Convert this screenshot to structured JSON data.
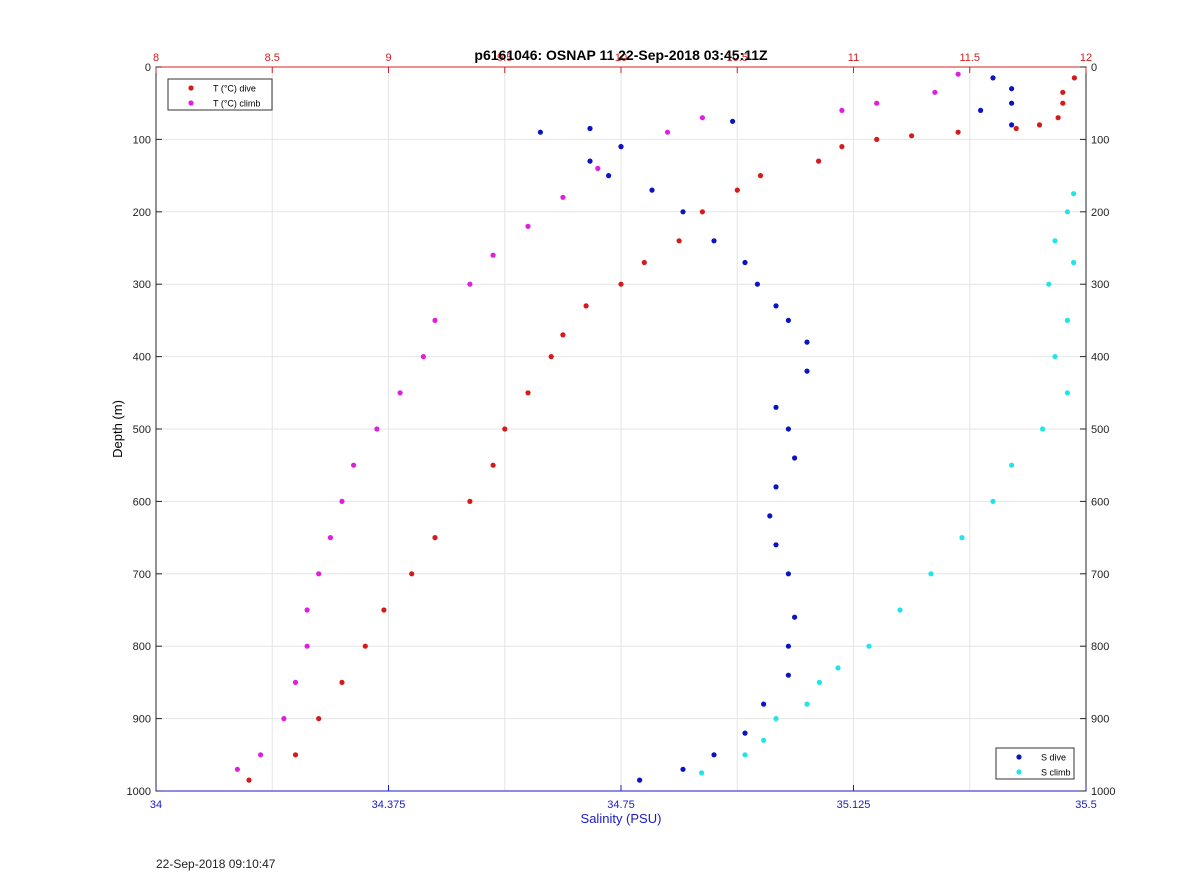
{
  "footer": {
    "timestamp": "22-Sep-2018 09:10:47"
  },
  "chart_data": {
    "type": "scatter",
    "title": "p6161046: OSNAP 11 22-Sep-2018 03:45:11Z",
    "axes": {
      "top_x": {
        "label": "",
        "range": [
          8,
          12
        ],
        "ticks": [
          "8",
          "8.5",
          "9",
          "9.5",
          "10",
          "10.5",
          "11",
          "11.5",
          "12"
        ],
        "tick_values": [
          8,
          8.5,
          9,
          9.5,
          10,
          10.5,
          11,
          11.5,
          12
        ],
        "color": "#d42020"
      },
      "bottom_x": {
        "label": "Salinity (PSU)",
        "range": [
          34,
          35.5
        ],
        "ticks": [
          "34",
          "34.375",
          "34.75",
          "35.125",
          "35.5"
        ],
        "tick_values": [
          34,
          34.375,
          34.75,
          35.125,
          35.5
        ],
        "color": "#1a1ac8"
      },
      "y": {
        "label": "Depth (m)",
        "range": [
          0,
          1000
        ],
        "reversed": true,
        "ticks": [
          "0",
          "100",
          "200",
          "300",
          "400",
          "500",
          "600",
          "700",
          "800",
          "900",
          "1000"
        ],
        "tick_values": [
          0,
          100,
          200,
          300,
          400,
          500,
          600,
          700,
          800,
          900,
          1000
        ]
      }
    },
    "grid": true,
    "legends": [
      {
        "placement": "top-left",
        "entries": [
          "T (°C) dive",
          "T (°C) climb"
        ]
      },
      {
        "placement": "bottom-right",
        "entries": [
          "S dive",
          "S climb"
        ]
      }
    ],
    "series": [
      {
        "name": "T (°C) dive",
        "axis": "top_x",
        "color": "#d41a1a",
        "points": [
          [
            11.95,
            15
          ],
          [
            11.9,
            35
          ],
          [
            11.9,
            50
          ],
          [
            11.88,
            70
          ],
          [
            11.8,
            80
          ],
          [
            11.7,
            85
          ],
          [
            11.45,
            90
          ],
          [
            11.25,
            95
          ],
          [
            11.1,
            100
          ],
          [
            10.95,
            110
          ],
          [
            10.85,
            130
          ],
          [
            10.6,
            150
          ],
          [
            10.5,
            170
          ],
          [
            10.35,
            200
          ],
          [
            10.25,
            240
          ],
          [
            10.1,
            270
          ],
          [
            10.0,
            300
          ],
          [
            9.85,
            330
          ],
          [
            9.75,
            370
          ],
          [
            9.7,
            400
          ],
          [
            9.6,
            450
          ],
          [
            9.5,
            500
          ],
          [
            9.45,
            550
          ],
          [
            9.35,
            600
          ],
          [
            9.2,
            650
          ],
          [
            9.1,
            700
          ],
          [
            8.98,
            750
          ],
          [
            8.9,
            800
          ],
          [
            8.8,
            850
          ],
          [
            8.7,
            900
          ],
          [
            8.6,
            950
          ],
          [
            8.4,
            985
          ]
        ]
      },
      {
        "name": "T (°C) climb",
        "axis": "top_x",
        "color": "#e01ee0",
        "points": [
          [
            11.45,
            10
          ],
          [
            11.35,
            35
          ],
          [
            11.1,
            50
          ],
          [
            10.95,
            60
          ],
          [
            10.35,
            70
          ],
          [
            10.2,
            90
          ],
          [
            10.0,
            110
          ],
          [
            9.9,
            140
          ],
          [
            9.75,
            180
          ],
          [
            9.6,
            220
          ],
          [
            9.45,
            260
          ],
          [
            9.35,
            300
          ],
          [
            9.2,
            350
          ],
          [
            9.15,
            400
          ],
          [
            9.05,
            450
          ],
          [
            8.95,
            500
          ],
          [
            8.85,
            550
          ],
          [
            8.8,
            600
          ],
          [
            8.75,
            650
          ],
          [
            8.7,
            700
          ],
          [
            8.65,
            750
          ],
          [
            8.65,
            800
          ],
          [
            8.6,
            850
          ],
          [
            8.55,
            900
          ],
          [
            8.45,
            950
          ],
          [
            8.35,
            970
          ]
        ]
      },
      {
        "name": "S dive",
        "axis": "bottom_x",
        "color": "#0a14c0",
        "points": [
          [
            35.35,
            15
          ],
          [
            35.38,
            30
          ],
          [
            35.38,
            50
          ],
          [
            35.33,
            60
          ],
          [
            35.38,
            80
          ],
          [
            34.93,
            75
          ],
          [
            34.7,
            85
          ],
          [
            34.62,
            90
          ],
          [
            34.75,
            110
          ],
          [
            34.7,
            130
          ],
          [
            34.73,
            150
          ],
          [
            34.8,
            170
          ],
          [
            34.85,
            200
          ],
          [
            34.9,
            240
          ],
          [
            34.95,
            270
          ],
          [
            34.97,
            300
          ],
          [
            35.0,
            330
          ],
          [
            35.02,
            350
          ],
          [
            35.05,
            380
          ],
          [
            35.05,
            420
          ],
          [
            35.0,
            470
          ],
          [
            35.02,
            500
          ],
          [
            35.03,
            540
          ],
          [
            35.0,
            580
          ],
          [
            34.99,
            620
          ],
          [
            35.0,
            660
          ],
          [
            35.02,
            700
          ],
          [
            35.03,
            760
          ],
          [
            35.02,
            800
          ],
          [
            35.02,
            840
          ],
          [
            34.98,
            880
          ],
          [
            34.95,
            920
          ],
          [
            34.9,
            950
          ],
          [
            34.85,
            970
          ],
          [
            34.78,
            985
          ]
        ]
      },
      {
        "name": "S climb",
        "axis": "bottom_x",
        "color": "#20e4ec",
        "points": [
          [
            35.48,
            175
          ],
          [
            35.47,
            200
          ],
          [
            35.45,
            240
          ],
          [
            35.48,
            270
          ],
          [
            35.44,
            300
          ],
          [
            35.47,
            350
          ],
          [
            35.45,
            400
          ],
          [
            35.47,
            450
          ],
          [
            35.43,
            500
          ],
          [
            35.38,
            550
          ],
          [
            35.35,
            600
          ],
          [
            35.3,
            650
          ],
          [
            35.25,
            700
          ],
          [
            35.2,
            750
          ],
          [
            35.15,
            800
          ],
          [
            35.1,
            830
          ],
          [
            35.07,
            850
          ],
          [
            35.05,
            880
          ],
          [
            35.0,
            900
          ],
          [
            34.98,
            930
          ],
          [
            34.95,
            950
          ],
          [
            34.88,
            975
          ]
        ]
      }
    ]
  }
}
